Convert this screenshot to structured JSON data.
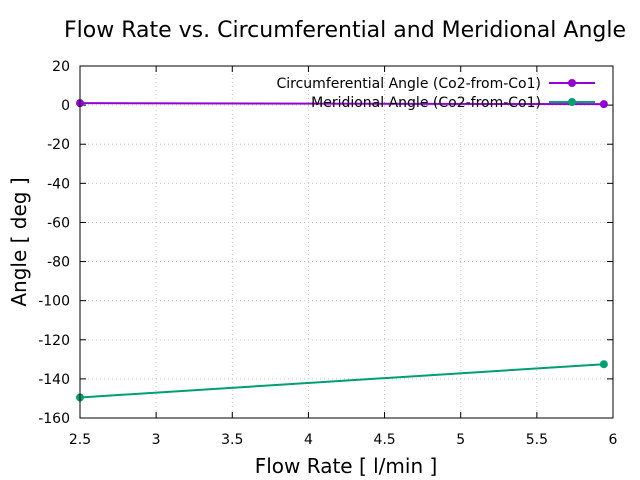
{
  "chart_data": {
    "type": "line",
    "title": "Flow Rate vs. Circumferential and Meridional Angle",
    "xlabel": "Flow Rate [ l/min ]",
    "ylabel": "Angle [ deg ]",
    "xlim": [
      2.5,
      6
    ],
    "ylim": [
      -160,
      20
    ],
    "xticks": [
      2.5,
      3,
      3.5,
      4,
      4.5,
      5,
      5.5,
      6
    ],
    "xtick_labels": [
      "2.5",
      "3",
      "3.5",
      "4",
      "4.5",
      "5",
      "5.5",
      "6"
    ],
    "yticks": [
      -160,
      -140,
      -120,
      -100,
      -80,
      -60,
      -40,
      -20,
      0,
      20
    ],
    "ytick_labels": [
      "-160",
      "-140",
      "-120",
      "-100",
      "-80",
      "-60",
      "-40",
      "-20",
      "0",
      "20"
    ],
    "grid": true,
    "legend_position": "top-right",
    "series": [
      {
        "name": "Circumferential Angle (Co2-from-Co1)",
        "color": "#9400d3",
        "x": [
          2.5,
          5.94
        ],
        "y": [
          1,
          0.5
        ]
      },
      {
        "name": "Meridional Angle (Co2-from-Co1)",
        "color": "#009e73",
        "x": [
          2.5,
          5.94
        ],
        "y": [
          -149.5,
          -132.5
        ]
      }
    ]
  }
}
